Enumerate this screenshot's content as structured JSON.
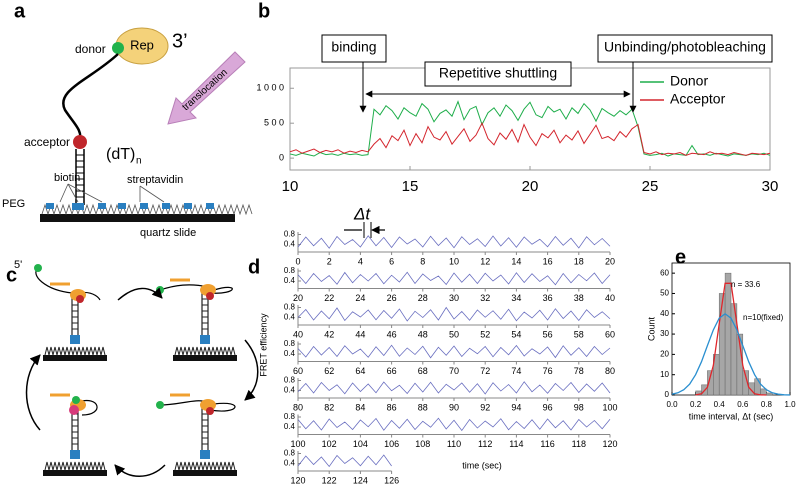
{
  "panel_labels": [
    "a",
    "b",
    "c",
    "d",
    "e"
  ],
  "diagram_a": {
    "donor": "donor",
    "enzyme": "Rep",
    "end_3": "3’",
    "arrow": "translocation",
    "acceptor": "acceptor",
    "strand": "(dT)",
    "strand_subscript": "n",
    "biotin": "biotin",
    "streptavidin": "streptavidin",
    "peg": "PEG",
    "surface": "quartz slide"
  },
  "diagram_c": {
    "end_5": "5'"
  },
  "chart_d_labels": {
    "ylabel": "FRET efficiency",
    "xlabel": "time (sec)",
    "interval": "Δt"
  },
  "chart_data": [
    {
      "type": "line",
      "legend": "upper right",
      "annotations": [
        "binding",
        "Repetitive shuttling",
        "Unbinding/photobleaching"
      ],
      "xlim": [
        10,
        30
      ],
      "xticks": [
        10,
        15,
        20,
        25,
        30
      ],
      "ylim": [
        -170,
        1290
      ],
      "yticks": [
        0,
        {
          "value": 500,
          "label": "5 0 0"
        },
        {
          "value": 1000,
          "label": "1 0 0 0"
        }
      ],
      "x": [
        10,
        10.25,
        10.5,
        10.75,
        11,
        11.25,
        11.5,
        11.75,
        12,
        12.25,
        12.5,
        12.75,
        13,
        13.25,
        13.5,
        13.75,
        14,
        14.25,
        14.5,
        14.75,
        15,
        15.25,
        15.5,
        15.75,
        16,
        16.25,
        16.5,
        16.75,
        17,
        17.25,
        17.5,
        17.75,
        18,
        18.25,
        18.5,
        18.75,
        19,
        19.25,
        19.5,
        19.75,
        20,
        20.25,
        20.5,
        20.75,
        21,
        21.25,
        21.5,
        21.75,
        22,
        22.25,
        22.5,
        22.75,
        23,
        23.25,
        23.5,
        23.75,
        24,
        24.25,
        24.5,
        24.75,
        25,
        25.25,
        25.5,
        25.75,
        26,
        26.25,
        26.5,
        26.75,
        27,
        27.25,
        27.5,
        27.75,
        28,
        28.25,
        28.5,
        28.75,
        29,
        29.25,
        29.5,
        29.75,
        30
      ],
      "series": [
        {
          "name": "Donor",
          "color": "#1fae4b",
          "values": [
            60,
            40,
            70,
            50,
            30,
            80,
            50,
            60,
            40,
            70,
            50,
            60,
            40,
            50,
            700,
            620,
            750,
            680,
            560,
            720,
            650,
            600,
            780,
            700,
            520,
            640,
            690,
            600,
            810,
            550,
            700,
            740,
            480,
            650,
            720,
            600,
            760,
            680,
            540,
            700,
            800,
            620,
            580,
            740,
            660,
            700,
            560,
            720,
            640,
            780,
            690,
            530,
            710,
            650,
            600,
            680,
            620,
            700,
            450,
            60,
            40,
            50,
            70,
            30,
            60,
            50,
            40,
            180,
            50,
            60,
            40,
            70,
            50,
            30,
            60,
            50,
            40,
            60,
            50,
            70,
            40
          ]
        },
        {
          "name": "Acceptor",
          "color": "#d4262e",
          "values": [
            90,
            120,
            70,
            100,
            130,
            80,
            110,
            90,
            120,
            70,
            100,
            80,
            110,
            90,
            200,
            280,
            150,
            320,
            250,
            400,
            180,
            350,
            220,
            450,
            300,
            260,
            380,
            200,
            310,
            420,
            240,
            330,
            500,
            280,
            190,
            360,
            270,
            410,
            230,
            480,
            300,
            180,
            350,
            290,
            400,
            220,
            330,
            260,
            390,
            210,
            340,
            470,
            280,
            310,
            250,
            380,
            300,
            420,
            480,
            80,
            60,
            90,
            50,
            70,
            60,
            80,
            40,
            70,
            60,
            50,
            90,
            60,
            70,
            50,
            80,
            60,
            40,
            70,
            60,
            50,
            70
          ]
        }
      ]
    },
    {
      "type": "line",
      "color": "#6a6fc0",
      "xlim": [
        0,
        20
      ],
      "xticks": [
        0,
        2,
        4,
        6,
        8,
        10,
        12,
        14,
        16,
        18,
        20
      ],
      "ylim": [
        0.1,
        0.9
      ],
      "yticks": [
        0.4,
        0.8
      ],
      "x": [
        0,
        0.5,
        1,
        1.5,
        2,
        2.5,
        3,
        3.5,
        4,
        4.5,
        5,
        5.5,
        6,
        6.5,
        7,
        7.5,
        8,
        8.5,
        9,
        9.5,
        10,
        10.5,
        11,
        11.5,
        12,
        12.5,
        13,
        13.5,
        14,
        14.5,
        15,
        15.5,
        16,
        16.5,
        17,
        17.5,
        18,
        18.5,
        19,
        19.5,
        20
      ],
      "values": [
        0.3,
        0.7,
        0.35,
        0.65,
        0.25,
        0.72,
        0.4,
        0.6,
        0.3,
        0.75,
        0.35,
        0.68,
        0.28,
        0.7,
        0.42,
        0.62,
        0.3,
        0.73,
        0.36,
        0.66,
        0.27,
        0.71,
        0.4,
        0.63,
        0.32,
        0.74,
        0.34,
        0.67,
        0.29,
        0.7,
        0.41,
        0.61,
        0.31,
        0.72,
        0.37,
        0.65,
        0.26,
        0.71,
        0.39,
        0.64,
        0.33
      ]
    },
    {
      "type": "line",
      "color": "#6a6fc0",
      "xlim": [
        20,
        40
      ],
      "xticks": [
        20,
        22,
        24,
        26,
        28,
        30,
        32,
        34,
        36,
        38,
        40
      ],
      "ylim": [
        0.1,
        0.9
      ],
      "yticks": [
        0.4,
        0.8
      ],
      "x": [
        20,
        20.5,
        21,
        21.5,
        22,
        22.5,
        23,
        23.5,
        24,
        24.5,
        25,
        25.5,
        26,
        26.5,
        27,
        27.5,
        28,
        28.5,
        29,
        29.5,
        30,
        30.5,
        31,
        31.5,
        32,
        32.5,
        33,
        33.5,
        34,
        34.5,
        35,
        35.5,
        36,
        36.5,
        37,
        37.5,
        38,
        38.5,
        39,
        39.5,
        40
      ],
      "values": [
        0.65,
        0.3,
        0.7,
        0.38,
        0.62,
        0.27,
        0.74,
        0.33,
        0.66,
        0.4,
        0.7,
        0.29,
        0.63,
        0.36,
        0.75,
        0.3,
        0.68,
        0.42,
        0.6,
        0.26,
        0.72,
        0.35,
        0.67,
        0.3,
        0.71,
        0.4,
        0.64,
        0.28,
        0.73,
        0.34,
        0.69,
        0.38,
        0.61,
        0.25,
        0.7,
        0.33,
        0.66,
        0.41,
        0.72,
        0.3,
        0.65
      ]
    },
    {
      "type": "line",
      "color": "#6a6fc0",
      "xlim": [
        40,
        60
      ],
      "xticks": [
        40,
        42,
        44,
        46,
        48,
        50,
        52,
        54,
        56,
        58,
        60
      ],
      "ylim": [
        0.1,
        0.9
      ],
      "yticks": [
        0.4,
        0.8
      ],
      "x": [
        40,
        40.5,
        41,
        41.5,
        42,
        42.5,
        43,
        43.5,
        44,
        44.5,
        45,
        45.5,
        46,
        46.5,
        47,
        47.5,
        48,
        48.5,
        49,
        49.5,
        50,
        50.5,
        51,
        51.5,
        52,
        52.5,
        53,
        53.5,
        54,
        54.5,
        55,
        55.5,
        56,
        56.5,
        57,
        57.5,
        58,
        58.5,
        59,
        59.5,
        60
      ],
      "values": [
        0.4,
        0.72,
        0.3,
        0.66,
        0.35,
        0.78,
        0.28,
        0.63,
        0.42,
        0.7,
        0.31,
        0.68,
        0.37,
        0.74,
        0.26,
        0.65,
        0.4,
        0.71,
        0.3,
        0.8,
        0.34,
        0.64,
        0.29,
        0.7,
        0.41,
        0.67,
        0.33,
        0.73,
        0.27,
        0.62,
        0.38,
        0.69,
        0.3,
        0.75,
        0.36,
        0.66,
        0.28,
        0.71,
        0.4,
        0.63,
        0.35
      ]
    },
    {
      "type": "line",
      "color": "#6a6fc0",
      "xlim": [
        60,
        80
      ],
      "xticks": [
        60,
        62,
        64,
        66,
        68,
        70,
        72,
        74,
        76,
        78,
        80
      ],
      "ylim": [
        0.1,
        0.9
      ],
      "yticks": [
        0.4,
        0.8
      ],
      "x": [
        60,
        60.5,
        61,
        61.5,
        62,
        62.5,
        63,
        63.5,
        64,
        64.5,
        65,
        65.5,
        66,
        66.5,
        67,
        67.5,
        68,
        68.5,
        69,
        69.5,
        70,
        70.5,
        71,
        71.5,
        72,
        72.5,
        73,
        73.5,
        74,
        74.5,
        75,
        75.5,
        76,
        76.5,
        77,
        77.5,
        78,
        78.5,
        79,
        79.5,
        80
      ],
      "values": [
        0.62,
        0.28,
        0.7,
        0.36,
        0.66,
        0.3,
        0.73,
        0.4,
        0.6,
        0.27,
        0.69,
        0.34,
        0.75,
        0.31,
        0.64,
        0.38,
        0.71,
        0.25,
        0.67,
        0.35,
        0.72,
        0.3,
        0.63,
        0.41,
        0.7,
        0.29,
        0.66,
        0.37,
        0.74,
        0.32,
        0.61,
        0.4,
        0.68,
        0.26,
        0.73,
        0.35,
        0.65,
        0.3,
        0.7,
        0.38,
        0.64
      ]
    },
    {
      "type": "line",
      "color": "#6a6fc0",
      "xlim": [
        80,
        100
      ],
      "xticks": [
        80,
        82,
        84,
        86,
        88,
        90,
        92,
        94,
        96,
        98,
        100
      ],
      "ylim": [
        0.1,
        0.9
      ],
      "yticks": [
        0.4,
        0.8
      ],
      "x": [
        80,
        80.5,
        81,
        81.5,
        82,
        82.5,
        83,
        83.5,
        84,
        84.5,
        85,
        85.5,
        86,
        86.5,
        87,
        87.5,
        88,
        88.5,
        89,
        89.5,
        90,
        90.5,
        91,
        91.5,
        92,
        92.5,
        93,
        93.5,
        94,
        94.5,
        95,
        95.5,
        96,
        96.5,
        97,
        97.5,
        98,
        98.5,
        99,
        99.5,
        100
      ],
      "values": [
        0.35,
        0.68,
        0.3,
        0.72,
        0.4,
        0.63,
        0.27,
        0.7,
        0.36,
        0.66,
        0.31,
        0.74,
        0.39,
        0.61,
        0.28,
        0.69,
        0.34,
        0.73,
        0.3,
        0.65,
        0.42,
        0.7,
        0.33,
        0.67,
        0.26,
        0.71,
        0.38,
        0.64,
        0.3,
        0.75,
        0.35,
        0.62,
        0.29,
        0.68,
        0.4,
        0.72,
        0.32,
        0.66,
        0.37,
        0.7,
        0.3
      ]
    },
    {
      "type": "line",
      "color": "#6a6fc0",
      "xlim": [
        100,
        120
      ],
      "xticks": [
        100,
        102,
        104,
        106,
        108,
        110,
        112,
        114,
        116,
        118,
        120
      ],
      "ylim": [
        0.1,
        0.9
      ],
      "yticks": [
        0.4,
        0.8
      ],
      "x": [
        100,
        100.5,
        101,
        101.5,
        102,
        102.5,
        103,
        103.5,
        104,
        104.5,
        105,
        105.5,
        106,
        106.5,
        107,
        107.5,
        108,
        108.5,
        109,
        109.5,
        110,
        110.5,
        111,
        111.5,
        112,
        112.5,
        113,
        113.5,
        114,
        114.5,
        115,
        115.5,
        116,
        116.5,
        117,
        117.5,
        118,
        118.5,
        119,
        119.5,
        120
      ],
      "values": [
        0.7,
        0.33,
        0.65,
        0.28,
        0.72,
        0.38,
        0.6,
        0.3,
        0.68,
        0.41,
        0.74,
        0.27,
        0.66,
        0.35,
        0.71,
        0.3,
        0.63,
        0.39,
        0.75,
        0.32,
        0.67,
        0.26,
        0.7,
        0.36,
        0.64,
        0.4,
        0.73,
        0.29,
        0.62,
        0.34,
        0.69,
        0.31,
        0.72,
        0.37,
        0.65,
        0.28,
        0.7,
        0.4,
        0.66,
        0.33,
        0.71
      ]
    },
    {
      "type": "line",
      "color": "#6a6fc0",
      "xlim": [
        120,
        126
      ],
      "xticks": [
        120,
        122,
        124,
        126
      ],
      "ylim": [
        0.1,
        0.9
      ],
      "yticks": [
        0.4,
        0.8
      ],
      "x": [
        120,
        120.5,
        121,
        121.5,
        122,
        122.5,
        123,
        123.5,
        124,
        124.5,
        125,
        125.5,
        126
      ],
      "values": [
        0.3,
        0.7,
        0.36,
        0.66,
        0.28,
        0.72,
        0.4,
        0.63,
        0.31,
        0.69,
        0.35,
        0.74,
        0.3
      ]
    },
    {
      "type": "histogram",
      "ylabel": "Count",
      "xlabel": "time interval, Δt (sec)",
      "color": "#a6a6a6",
      "xlim": [
        0,
        1
      ],
      "xticks": [
        {
          "value": 0,
          "label": "0.0"
        },
        0.2,
        0.4,
        0.6,
        0.8,
        {
          "value": 1,
          "label": "1.0"
        }
      ],
      "ylim": [
        0,
        65
      ],
      "yticks": [
        0,
        10,
        20,
        30,
        40,
        50,
        60
      ],
      "bins": [
        0.2,
        0.25,
        0.3,
        0.35,
        0.4,
        0.45,
        0.5,
        0.55,
        0.6,
        0.65,
        0.7,
        0.75,
        0.8,
        0.85
      ],
      "values": [
        2,
        5,
        12,
        20,
        50,
        60,
        45,
        30,
        12,
        6,
        8,
        3,
        1
      ],
      "series": [
        {
          "name": "n = 33.6",
          "color": "#e0262b",
          "x": [
            0.2,
            0.25,
            0.3,
            0.35,
            0.4,
            0.45,
            0.5,
            0.55,
            0.6,
            0.65,
            0.7,
            0.75,
            0.8
          ],
          "values": [
            0.07,
            0.6,
            3.8,
            14.5,
            35,
            55,
            55,
            35,
            14.5,
            3.8,
            0.6,
            0.07,
            0
          ]
        },
        {
          "name": "n=10(fixed)",
          "color": "#2a8fd0",
          "x": [
            0,
            0.05,
            0.1,
            0.15,
            0.2,
            0.25,
            0.3,
            0.35,
            0.4,
            0.45,
            0.5,
            0.55,
            0.6,
            0.65,
            0.7,
            0.75,
            0.8,
            0.85,
            0.9,
            0.95,
            1
          ],
          "values": [
            0.4,
            1.1,
            2.6,
            5.4,
            10,
            16.4,
            24.3,
            32,
            37.8,
            40,
            37.8,
            32,
            24.3,
            16.4,
            10,
            5.4,
            2.6,
            1.1,
            0.4,
            0.1,
            0.04
          ]
        }
      ]
    }
  ]
}
